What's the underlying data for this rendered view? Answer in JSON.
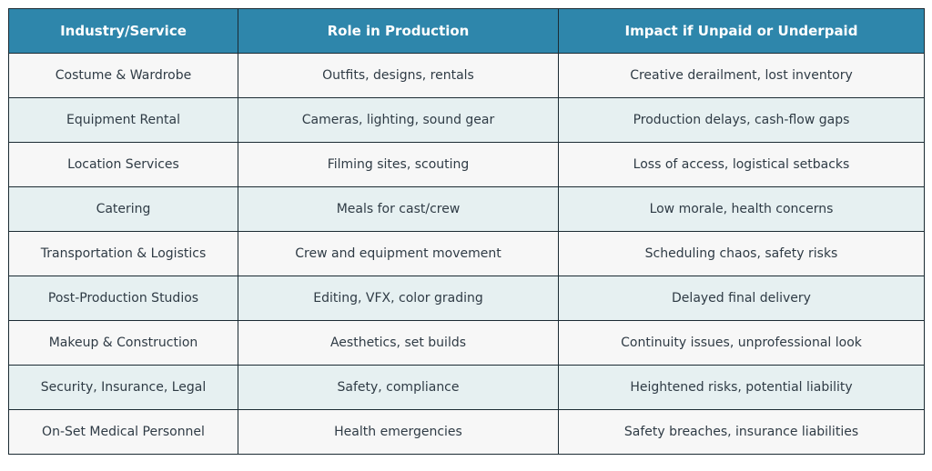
{
  "table": {
    "headers": [
      "Industry/Service",
      "Role in Production",
      "Impact if Unpaid or Underpaid"
    ],
    "rows": [
      [
        "Costume & Wardrobe",
        "Outfits, designs, rentals",
        "Creative derailment, lost inventory"
      ],
      [
        "Equipment Rental",
        "Cameras, lighting, sound gear",
        "Production delays, cash-flow gaps"
      ],
      [
        "Location Services",
        "Filming sites, scouting",
        "Loss of access, logistical setbacks"
      ],
      [
        "Catering",
        "Meals for cast/crew",
        "Low morale, health concerns"
      ],
      [
        "Transportation & Logistics",
        "Crew and equipment movement",
        "Scheduling chaos, safety risks"
      ],
      [
        "Post-Production Studios",
        "Editing, VFX, color grading",
        "Delayed final delivery"
      ],
      [
        "Makeup & Construction",
        "Aesthetics, set builds",
        "Continuity issues, unprofessional look"
      ],
      [
        "Security, Insurance, Legal",
        "Safety, compliance",
        "Heightened risks, potential liability"
      ],
      [
        "On-Set Medical Personnel",
        "Health emergencies",
        "Safety breaches, insurance liabilities"
      ]
    ]
  },
  "colors": {
    "header_bg": "#2e86ab",
    "header_text": "#ffffff",
    "row_light": "#f7f7f7",
    "row_tinted": "#e6f0f1",
    "border": "#1b2b33",
    "body_text": "#2f3b45"
  }
}
